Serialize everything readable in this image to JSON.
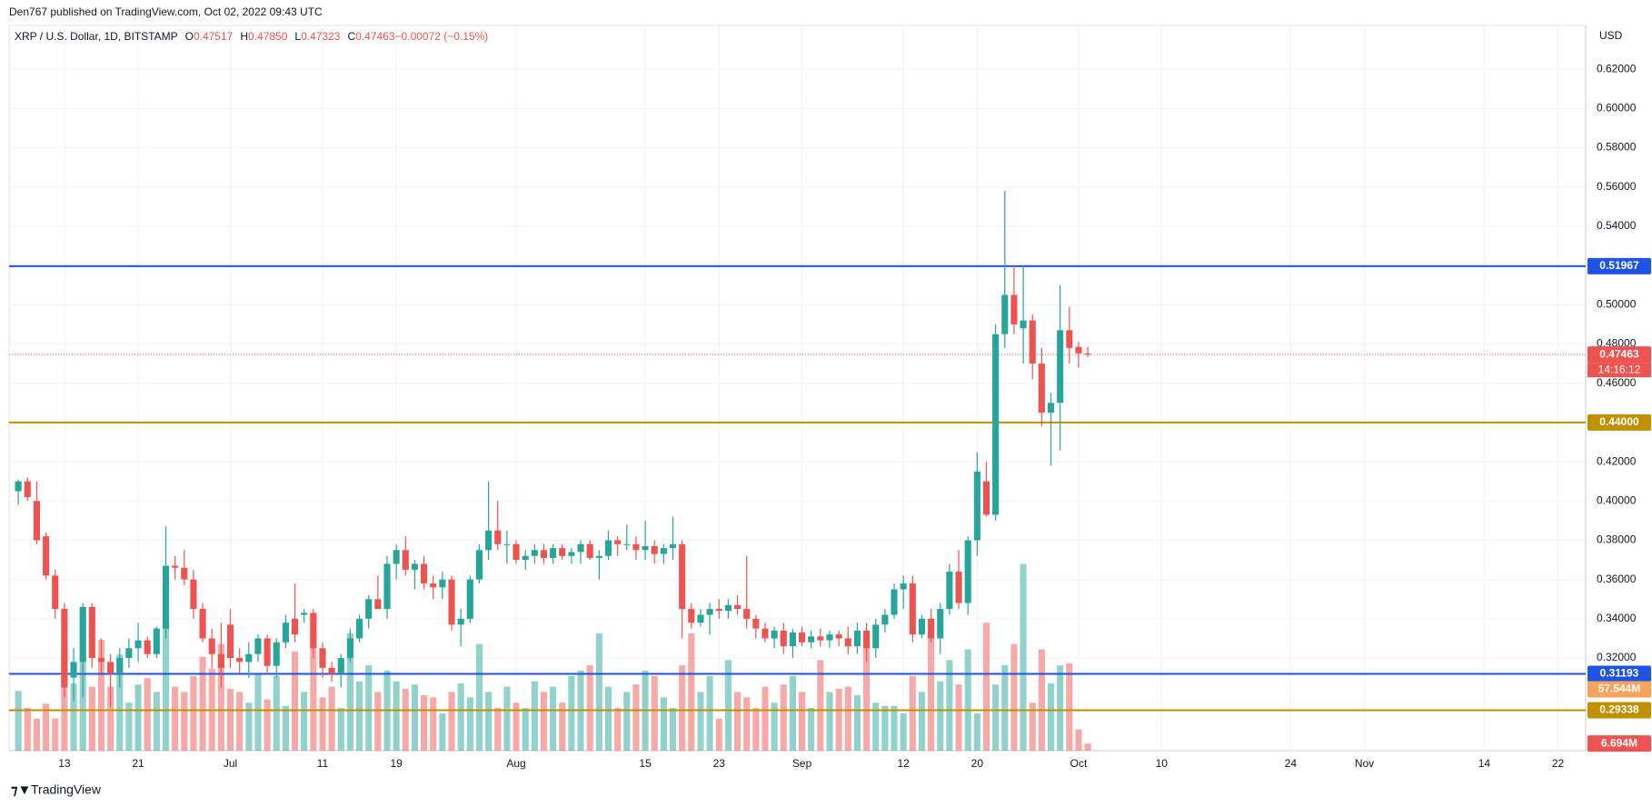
{
  "header": "Den767 published on TradingView.com, Oct 02, 2022 09:43 UTC",
  "footer": "TradingView",
  "chart_data": {
    "type": "candlestick",
    "symbol": "XRP / U.S. Dollar, 1D, BITSTAMP",
    "ohlc_header": [
      {
        "key": "O",
        "text": "0.47517"
      },
      {
        "key": "H",
        "text": "0.47850"
      },
      {
        "key": "L",
        "text": "0.47323"
      },
      {
        "key": "C",
        "text": "0.47463"
      },
      {
        "key": "",
        "text": "−0.00072 (−0.15%)"
      }
    ],
    "currency": "USD",
    "up_color": "#26a69a",
    "down_color": "#ef5350",
    "open": [
      0.405,
      0.41,
      0.4,
      0.382,
      0.362,
      0.345,
      0.31,
      0.318,
      0.346,
      0.32,
      0.318,
      0.312,
      0.32,
      0.325,
      0.329,
      0.322,
      0.335,
      0.367,
      0.366,
      0.36,
      0.345,
      0.33,
      0.322,
      0.337,
      0.32,
      0.318,
      0.322,
      0.33,
      0.316,
      0.328,
      0.34,
      0.342,
      0.343,
      0.325,
      0.315,
      0.312,
      0.32,
      0.33,
      0.34,
      0.35,
      0.345,
      0.368,
      0.375,
      0.365,
      0.368,
      0.358,
      0.356,
      0.36,
      0.337,
      0.34,
      0.36,
      0.375,
      0.385,
      0.378,
      0.378,
      0.37,
      0.372,
      0.375,
      0.371,
      0.376,
      0.372,
      0.374,
      0.378,
      0.371,
      0.372,
      0.38,
      0.378,
      0.378,
      0.375,
      0.377,
      0.373,
      0.376,
      0.378,
      0.345,
      0.338,
      0.342,
      0.345,
      0.344,
      0.347,
      0.345,
      0.34,
      0.335,
      0.33,
      0.334,
      0.326,
      0.333,
      0.328,
      0.331,
      0.329,
      0.332,
      0.33,
      0.326,
      0.334,
      0.325,
      0.337,
      0.342,
      0.355,
      0.358,
      0.332,
      0.34,
      0.33,
      0.345,
      0.364,
      0.348,
      0.38,
      0.41,
      0.393,
      0.485,
      0.505,
      0.488,
      0.492,
      0.47,
      0.445,
      0.45,
      0.487,
      0.4785,
      0.47517
    ],
    "high": [
      0.411,
      0.412,
      0.41,
      0.384,
      0.365,
      0.348,
      0.325,
      0.348,
      0.348,
      0.33,
      0.322,
      0.325,
      0.33,
      0.338,
      0.331,
      0.336,
      0.387,
      0.372,
      0.375,
      0.365,
      0.348,
      0.335,
      0.338,
      0.345,
      0.325,
      0.328,
      0.332,
      0.332,
      0.33,
      0.342,
      0.358,
      0.345,
      0.345,
      0.328,
      0.318,
      0.322,
      0.335,
      0.342,
      0.352,
      0.362,
      0.372,
      0.378,
      0.382,
      0.37,
      0.372,
      0.362,
      0.364,
      0.362,
      0.345,
      0.362,
      0.378,
      0.41,
      0.4,
      0.385,
      0.38,
      0.375,
      0.378,
      0.378,
      0.378,
      0.378,
      0.376,
      0.38,
      0.38,
      0.375,
      0.385,
      0.382,
      0.388,
      0.382,
      0.39,
      0.38,
      0.378,
      0.392,
      0.38,
      0.348,
      0.345,
      0.348,
      0.35,
      0.35,
      0.352,
      0.372,
      0.342,
      0.338,
      0.336,
      0.338,
      0.335,
      0.336,
      0.334,
      0.335,
      0.334,
      0.334,
      0.336,
      0.338,
      0.338,
      0.34,
      0.345,
      0.358,
      0.362,
      0.362,
      0.342,
      0.345,
      0.348,
      0.368,
      0.375,
      0.382,
      0.425,
      0.42,
      0.49,
      0.558,
      0.52,
      0.52,
      0.495,
      0.478,
      0.455,
      0.51,
      0.499,
      0.481,
      0.4785
    ],
    "low": [
      0.398,
      0.4,
      0.378,
      0.36,
      0.34,
      0.3,
      0.298,
      0.3,
      0.315,
      0.312,
      0.295,
      0.305,
      0.315,
      0.318,
      0.32,
      0.32,
      0.33,
      0.36,
      0.357,
      0.34,
      0.328,
      0.315,
      0.305,
      0.315,
      0.312,
      0.31,
      0.318,
      0.312,
      0.31,
      0.325,
      0.328,
      0.338,
      0.32,
      0.31,
      0.308,
      0.305,
      0.318,
      0.328,
      0.335,
      0.345,
      0.34,
      0.36,
      0.362,
      0.355,
      0.355,
      0.35,
      0.35,
      0.334,
      0.326,
      0.338,
      0.358,
      0.37,
      0.375,
      0.368,
      0.368,
      0.365,
      0.368,
      0.368,
      0.368,
      0.37,
      0.368,
      0.368,
      0.37,
      0.36,
      0.37,
      0.372,
      0.375,
      0.37,
      0.37,
      0.368,
      0.368,
      0.37,
      0.33,
      0.335,
      0.336,
      0.332,
      0.34,
      0.34,
      0.342,
      0.335,
      0.33,
      0.328,
      0.325,
      0.322,
      0.32,
      0.326,
      0.325,
      0.326,
      0.325,
      0.326,
      0.322,
      0.322,
      0.318,
      0.32,
      0.333,
      0.34,
      0.345,
      0.328,
      0.33,
      0.328,
      0.322,
      0.342,
      0.345,
      0.342,
      0.372,
      0.392,
      0.39,
      0.478,
      0.485,
      0.47,
      0.462,
      0.438,
      0.418,
      0.426,
      0.47,
      0.468,
      0.47323
    ],
    "close": [
      0.41,
      0.402,
      0.38,
      0.362,
      0.345,
      0.305,
      0.318,
      0.346,
      0.32,
      0.318,
      0.312,
      0.32,
      0.325,
      0.329,
      0.322,
      0.335,
      0.367,
      0.366,
      0.36,
      0.345,
      0.33,
      0.322,
      0.315,
      0.32,
      0.318,
      0.322,
      0.33,
      0.316,
      0.328,
      0.338,
      0.332,
      0.343,
      0.325,
      0.315,
      0.312,
      0.32,
      0.33,
      0.34,
      0.35,
      0.345,
      0.368,
      0.375,
      0.365,
      0.368,
      0.358,
      0.356,
      0.36,
      0.337,
      0.34,
      0.36,
      0.375,
      0.385,
      0.378,
      0.378,
      0.37,
      0.372,
      0.375,
      0.371,
      0.376,
      0.372,
      0.374,
      0.378,
      0.371,
      0.372,
      0.38,
      0.378,
      0.378,
      0.375,
      0.377,
      0.373,
      0.376,
      0.378,
      0.345,
      0.338,
      0.342,
      0.345,
      0.344,
      0.347,
      0.345,
      0.34,
      0.335,
      0.33,
      0.334,
      0.326,
      0.333,
      0.328,
      0.331,
      0.329,
      0.332,
      0.33,
      0.326,
      0.334,
      0.325,
      0.337,
      0.342,
      0.355,
      0.358,
      0.332,
      0.34,
      0.33,
      0.345,
      0.364,
      0.348,
      0.38,
      0.415,
      0.393,
      0.485,
      0.505,
      0.49,
      0.492,
      0.47,
      0.445,
      0.45,
      0.487,
      0.478,
      0.4752,
      0.47463
    ],
    "volume": [
      56,
      40,
      30,
      44,
      30,
      98,
      63,
      85,
      60,
      104,
      60,
      90,
      45,
      62,
      68,
      55,
      120,
      60,
      55,
      70,
      88,
      77,
      100,
      58,
      55,
      45,
      72,
      48,
      70,
      42,
      93,
      55,
      110,
      50,
      60,
      40,
      110,
      65,
      80,
      55,
      75,
      65,
      58,
      62,
      52,
      50,
      35,
      55,
      63,
      50,
      100,
      55,
      40,
      60,
      45,
      40,
      65,
      55,
      60,
      45,
      70,
      75,
      80,
      110,
      60,
      40,
      55,
      62,
      75,
      70,
      50,
      40,
      80,
      110,
      55,
      70,
      30,
      85,
      55,
      50,
      40,
      60,
      45,
      62,
      70,
      55,
      40,
      85,
      55,
      58,
      60,
      52,
      100,
      45,
      42,
      42,
      35,
      70,
      55,
      110,
      65,
      85,
      62,
      95,
      35,
      120,
      62,
      80,
      100,
      175,
      45,
      95,
      63,
      80,
      82,
      20,
      6.694
    ],
    "xlim": [
      -1,
      170
    ],
    "ylim": [
      0.2728,
      0.6423
    ],
    "vlim": [
      0,
      680
    ],
    "xticks": [
      {
        "value": 5,
        "label": "13"
      },
      {
        "value": 13,
        "label": "21"
      },
      {
        "value": 23,
        "label": "Jul"
      },
      {
        "value": 33,
        "label": "11"
      },
      {
        "value": 41,
        "label": "19"
      },
      {
        "value": 54,
        "label": "Aug"
      },
      {
        "value": 68,
        "label": "15"
      },
      {
        "value": 76,
        "label": "23"
      },
      {
        "value": 85,
        "label": "Sep"
      },
      {
        "value": 96,
        "label": "12"
      },
      {
        "value": 104,
        "label": "20"
      },
      {
        "value": 115,
        "label": "Oct"
      },
      {
        "value": 124,
        "label": "10"
      },
      {
        "value": 138,
        "label": "24"
      },
      {
        "value": 146,
        "label": "Nov"
      },
      {
        "value": 159,
        "label": "14"
      },
      {
        "value": 167,
        "label": "22"
      }
    ],
    "yticks": [
      {
        "value": 0.32,
        "label": "0.32000"
      },
      {
        "value": 0.34,
        "label": "0.34000"
      },
      {
        "value": 0.36,
        "label": "0.36000"
      },
      {
        "value": 0.38,
        "label": "0.38000"
      },
      {
        "value": 0.4,
        "label": "0.40000"
      },
      {
        "value": 0.42,
        "label": "0.42000"
      },
      {
        "value": 0.44,
        "label": "0.44000"
      },
      {
        "value": 0.46,
        "label": "0.46000"
      },
      {
        "value": 0.48,
        "label": "0.48000"
      },
      {
        "value": 0.5,
        "label": "0.50000"
      },
      {
        "value": 0.52,
        "label": "0.52000"
      },
      {
        "value": 0.54,
        "label": "0.54000"
      },
      {
        "value": 0.56,
        "label": "0.56000"
      },
      {
        "value": 0.58,
        "label": "0.58000"
      },
      {
        "value": 0.6,
        "label": "0.60000"
      },
      {
        "value": 0.62,
        "label": "0.62000"
      }
    ],
    "grid": true,
    "levels": [
      {
        "value": 0.51967,
        "label": "0.51967",
        "color": "#1e53e5"
      },
      {
        "value": 0.44,
        "label": "0.44000",
        "color": "#bf9000"
      },
      {
        "value": 0.31193,
        "label": "0.31193",
        "color": "#1e53e5"
      },
      {
        "value": 0.29338,
        "label": "0.29338",
        "color": "#bf9000"
      }
    ],
    "last_price": {
      "value": 0.47463,
      "label": "0.47463",
      "countdown": "14:16:12",
      "color": "#ef5350"
    },
    "volume_tags": [
      {
        "value": 57.544,
        "label": "57.544M",
        "color": "#f7a35c"
      },
      {
        "value": 6.694,
        "label": "6.694M",
        "color": "#ef5350"
      }
    ]
  }
}
